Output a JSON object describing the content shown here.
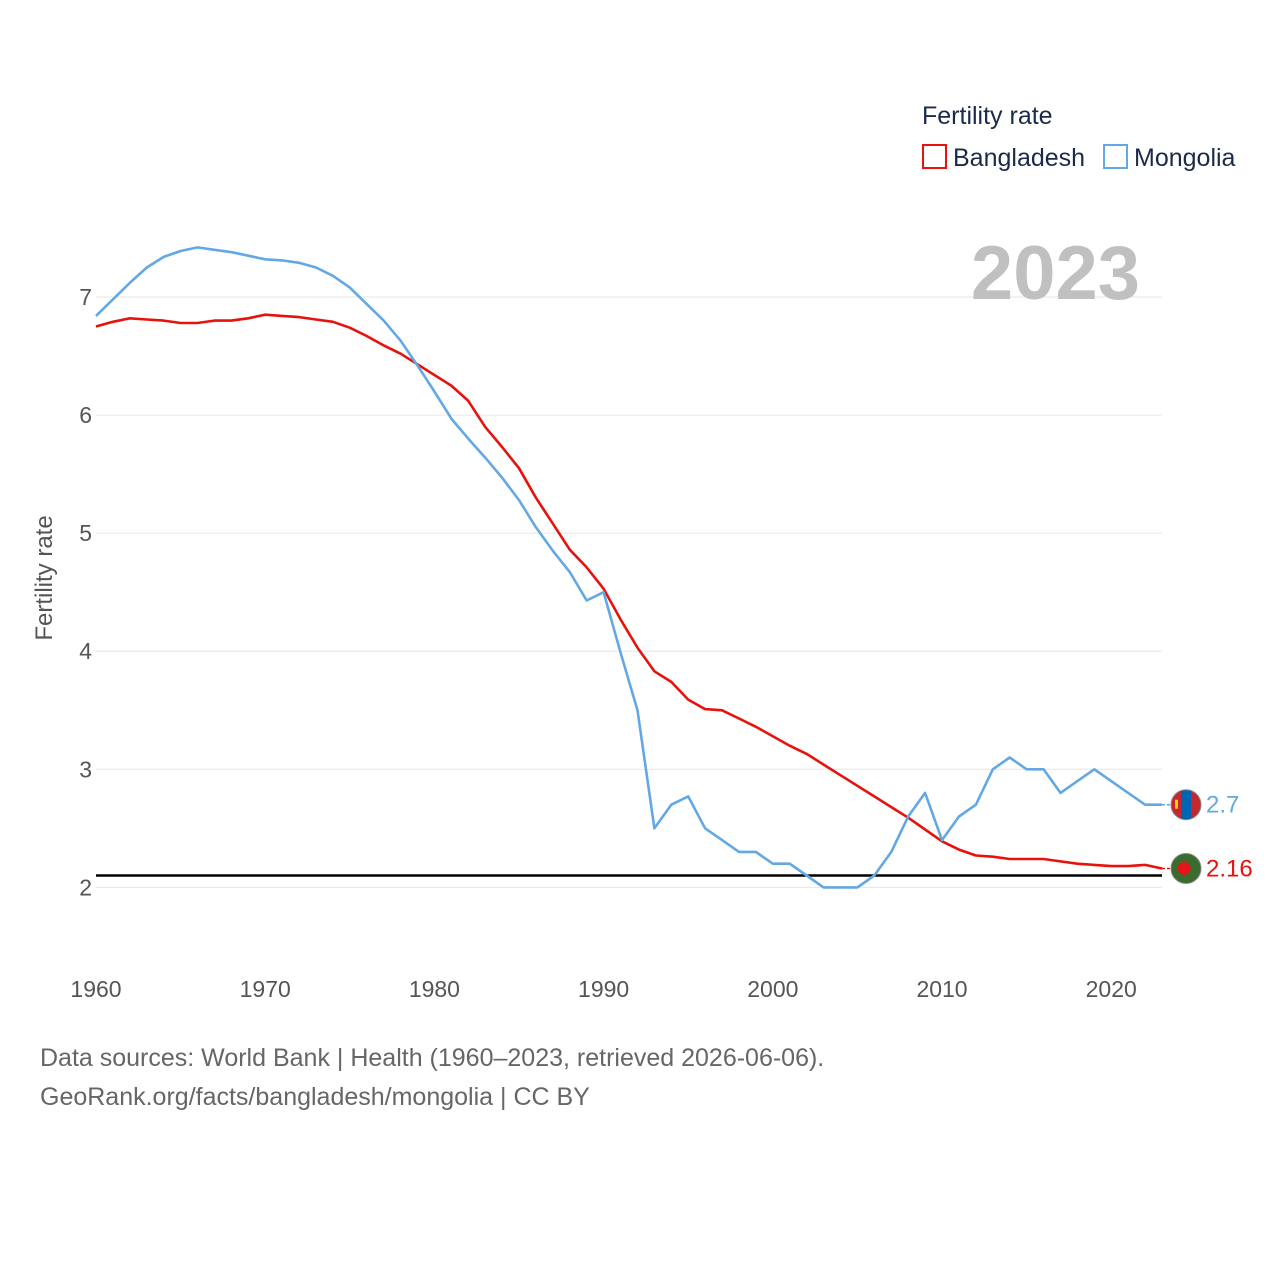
{
  "chart_data": {
    "type": "line",
    "year_label": "2023",
    "ylabel": "Fertility rate",
    "legend": {
      "title": "Fertility rate",
      "placement": "top-right"
    },
    "xlim": [
      1960,
      2023
    ],
    "ylim": [
      1.3,
      7.5
    ],
    "x_ticks": [
      1960,
      1970,
      1980,
      1990,
      2000,
      2010,
      2020
    ],
    "y_ticks": [
      2,
      3,
      4,
      5,
      6,
      7
    ],
    "reference_line": 2.1,
    "x": [
      1960,
      1961,
      1962,
      1963,
      1964,
      1965,
      1966,
      1967,
      1968,
      1969,
      1970,
      1971,
      1972,
      1973,
      1974,
      1975,
      1976,
      1977,
      1978,
      1979,
      1980,
      1981,
      1982,
      1983,
      1984,
      1985,
      1986,
      1987,
      1988,
      1989,
      1990,
      1991,
      1992,
      1993,
      1994,
      1995,
      1996,
      1997,
      1998,
      1999,
      2000,
      2001,
      2002,
      2003,
      2004,
      2005,
      2006,
      2007,
      2008,
      2009,
      2010,
      2011,
      2012,
      2013,
      2014,
      2015,
      2016,
      2017,
      2018,
      2019,
      2020,
      2021,
      2022,
      2023
    ],
    "series": [
      {
        "name": "Bangladesh",
        "color": "#e8120c",
        "end_label": "2.16",
        "flag": "bangladesh-flag-icon",
        "values": [
          6.75,
          6.79,
          6.82,
          6.81,
          6.8,
          6.78,
          6.78,
          6.8,
          6.8,
          6.82,
          6.85,
          6.84,
          6.83,
          6.81,
          6.79,
          6.74,
          6.67,
          6.59,
          6.52,
          6.43,
          6.34,
          6.25,
          6.12,
          5.9,
          5.73,
          5.55,
          5.3,
          5.08,
          4.86,
          4.71,
          4.53,
          4.27,
          4.03,
          3.83,
          3.74,
          3.59,
          3.51,
          3.5,
          3.43,
          3.36,
          3.28,
          3.2,
          3.13,
          3.04,
          2.95,
          2.86,
          2.77,
          2.68,
          2.59,
          2.49,
          2.39,
          2.32,
          2.27,
          2.26,
          2.24,
          2.24,
          2.24,
          2.22,
          2.2,
          2.19,
          2.18,
          2.18,
          2.19,
          2.16
        ]
      },
      {
        "name": "Mongolia",
        "color": "#63a8e4",
        "end_label": "2.7",
        "flag": "mongolia-flag-icon",
        "values": [
          6.84,
          6.98,
          7.12,
          7.25,
          7.34,
          7.39,
          7.42,
          7.4,
          7.38,
          7.35,
          7.32,
          7.31,
          7.29,
          7.25,
          7.18,
          7.08,
          6.94,
          6.8,
          6.63,
          6.42,
          6.2,
          5.97,
          5.8,
          5.64,
          5.47,
          5.28,
          5.05,
          4.85,
          4.67,
          4.43,
          4.5,
          3.99,
          3.5,
          2.5,
          2.7,
          2.77,
          2.5,
          2.4,
          2.3,
          2.3,
          2.2,
          2.2,
          2.1,
          2.0,
          2.0,
          2.0,
          2.1,
          2.3,
          2.6,
          2.8,
          2.4,
          2.6,
          2.7,
          3.0,
          3.1,
          3.0,
          3.0,
          2.8,
          2.9,
          3.0,
          2.9,
          2.8,
          2.7,
          2.7
        ]
      }
    ]
  },
  "footer": {
    "sources": "Data sources: World Bank | Health (1960–2023, retrieved 2026-06-06).",
    "link": "GeoRank.org/facts/bangladesh/mongolia | CC BY"
  }
}
